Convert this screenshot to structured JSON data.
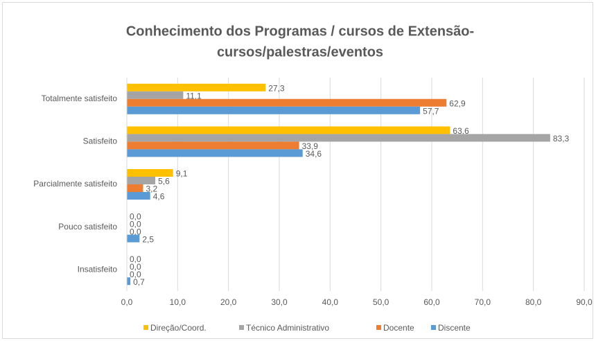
{
  "chart_data": {
    "type": "bar",
    "orientation": "horizontal",
    "title": [
      "Conhecimento dos Programas / cursos de Extensão-",
      "cursos/palestras/eventos"
    ],
    "categories": [
      "Totalmente satisfeito",
      "Satisfeito",
      "Parcialmente satisfeito",
      "Pouco satisfeito",
      "Insatisfeito"
    ],
    "series": [
      {
        "name": "Direção/Coord.",
        "color": "#FFC000",
        "values": [
          27.3,
          63.6,
          9.1,
          0,
          0
        ],
        "value_labels": [
          "27,3",
          "63,6",
          "9,1",
          "0,0",
          "0,0"
        ]
      },
      {
        "name": "Técnico Administrativo",
        "color": "#A5A5A5",
        "values": [
          11.1,
          83.3,
          5.6,
          0,
          0
        ],
        "value_labels": [
          "11,1",
          "83,3",
          "5,6",
          "0,0",
          "0,0"
        ]
      },
      {
        "name": "Docente",
        "color": "#ED7D31",
        "values": [
          62.9,
          33.9,
          3.2,
          0,
          0
        ],
        "value_labels": [
          "62,9",
          "33,9",
          "3,2",
          "0,0",
          "0,0"
        ]
      },
      {
        "name": "Discente",
        "color": "#5B9BD5",
        "values": [
          57.7,
          34.6,
          4.6,
          2.5,
          0.7
        ],
        "value_labels": [
          "57,7",
          "34,6",
          "4,6",
          "2,5",
          "0,7"
        ]
      }
    ],
    "xlim": [
      0,
      90
    ],
    "xticks": [
      {
        "value": 0,
        "label": "0,0"
      },
      {
        "value": 10,
        "label": "10,0"
      },
      {
        "value": 20,
        "label": "20,0"
      },
      {
        "value": 30,
        "label": "30,0"
      },
      {
        "value": 40,
        "label": "40,0"
      },
      {
        "value": 50,
        "label": "50,0"
      },
      {
        "value": 60,
        "label": "60,0"
      },
      {
        "value": 70,
        "label": "70,0"
      },
      {
        "value": 80,
        "label": "80,0"
      },
      {
        "value": 90,
        "label": "90,0"
      }
    ],
    "grid": true,
    "legend": "bottom"
  }
}
